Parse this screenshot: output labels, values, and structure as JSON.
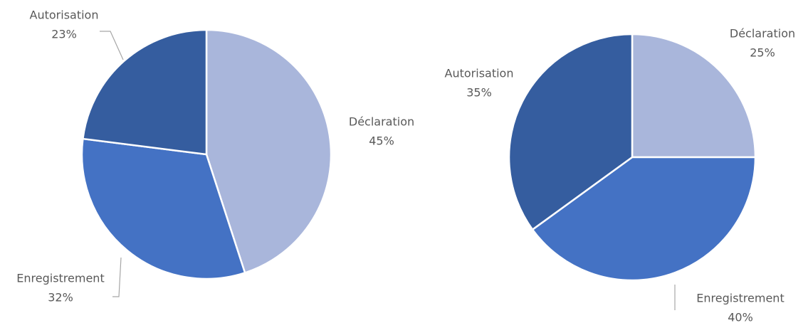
{
  "chart_data": [
    {
      "type": "pie",
      "categories": [
        "Déclaration",
        "Enregistrement",
        "Autorisation"
      ],
      "values": [
        45,
        32,
        23
      ],
      "value_labels": [
        "45%",
        "32%",
        "23%"
      ],
      "colors": [
        "#a9b6db",
        "#4472c4",
        "#355d9f"
      ]
    },
    {
      "type": "pie",
      "categories": [
        "Déclaration",
        "Enregistrement",
        "Autorisation"
      ],
      "values": [
        25,
        40,
        35
      ],
      "value_labels": [
        "25%",
        "40%",
        "35%"
      ],
      "colors": [
        "#a9b6db",
        "#4472c4",
        "#355d9f"
      ]
    }
  ]
}
